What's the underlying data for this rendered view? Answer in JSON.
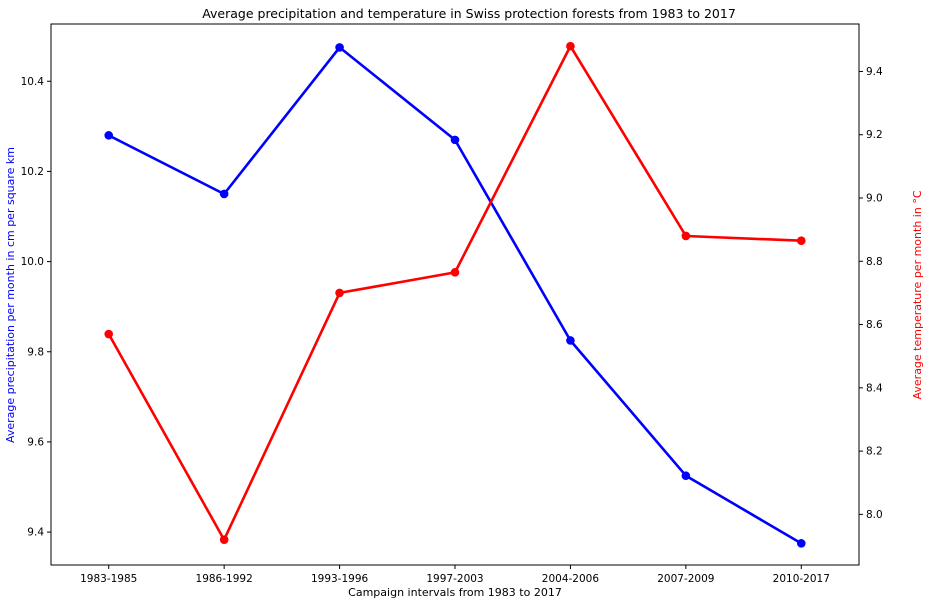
{
  "chart_data": {
    "type": "line",
    "title": "Average precipitation and temperature in Swiss protection forests from 1983 to 2017",
    "xlabel": "Campaign intervals from 1983 to 2017",
    "categories": [
      "1983-1985",
      "1986-1992",
      "1993-1996",
      "1997-2003",
      "2004-2006",
      "2007-2009",
      "2010-2017"
    ],
    "y_left": {
      "label": "Average precipitation per month in cm per square km",
      "ticks": [
        9.4,
        9.6,
        9.8,
        10.0,
        10.2,
        10.4
      ],
      "tick_labels": [
        "9.4",
        "9.6",
        "9.8",
        "10.0",
        "10.2",
        "10.4"
      ],
      "range": [
        9.327,
        10.527
      ],
      "color": "#0000ff"
    },
    "y_right": {
      "label": "Average temperature per month in °C",
      "ticks": [
        8.0,
        8.2,
        8.4,
        8.6,
        8.8,
        9.0,
        9.2,
        9.4
      ],
      "tick_labels": [
        "8.0",
        "8.2",
        "8.4",
        "8.6",
        "8.8",
        "9.0",
        "9.2",
        "9.4"
      ],
      "range": [
        7.84,
        9.55
      ],
      "color": "#ff0000"
    },
    "series": [
      {
        "axis": "left",
        "color": "#0000ff",
        "values": [
          10.28,
          10.15,
          10.475,
          10.27,
          9.825,
          9.525,
          9.375
        ]
      },
      {
        "axis": "right",
        "color": "#ff0000",
        "values": [
          8.57,
          7.92,
          8.7,
          8.765,
          9.48,
          8.88,
          8.865
        ]
      }
    ],
    "grid": false,
    "legend": "none"
  }
}
